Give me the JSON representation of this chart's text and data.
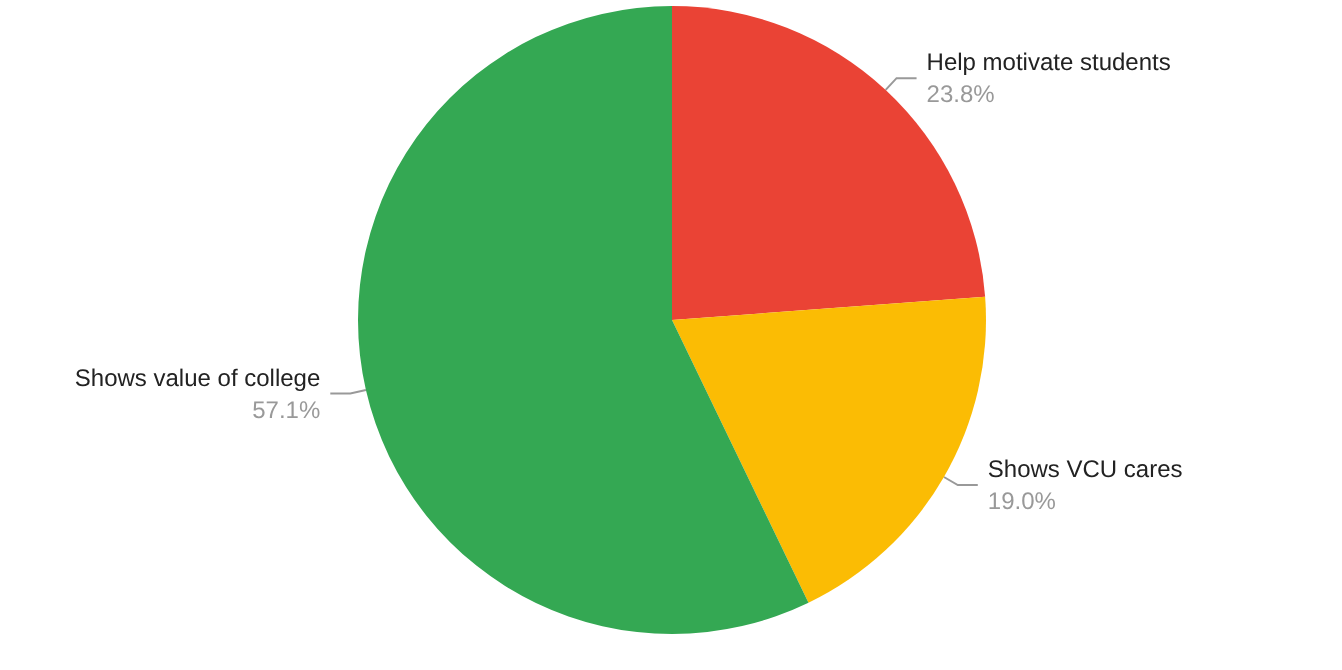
{
  "chart_data": {
    "type": "pie",
    "categories": [
      "Help motivate students",
      "Shows VCU cares",
      "Shows value of college"
    ],
    "values": [
      23.8,
      19.0,
      57.1
    ],
    "colors": [
      "#ea4335",
      "#fbbc04",
      "#34a853"
    ],
    "value_labels": [
      "23.8%",
      "19.0%",
      "57.1%"
    ],
    "legend": false
  }
}
